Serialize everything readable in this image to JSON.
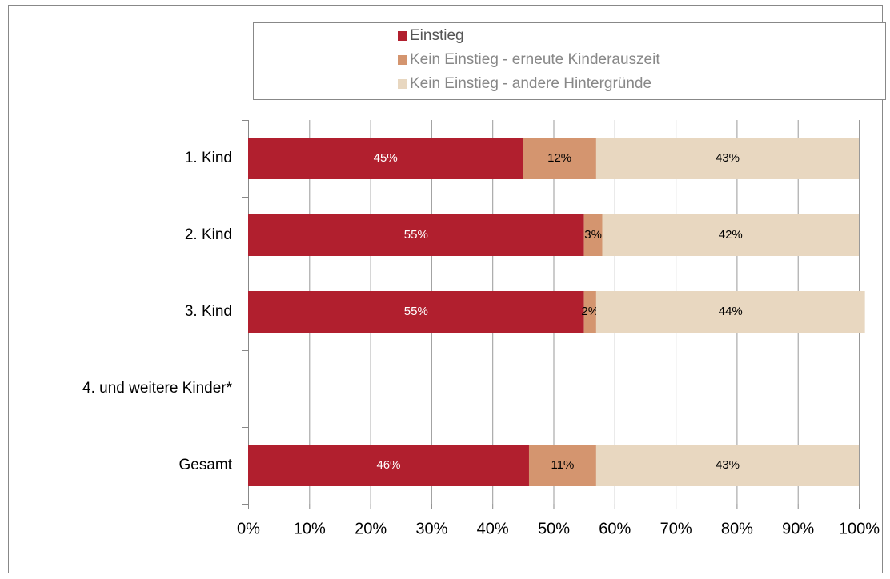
{
  "chart_data": {
    "type": "stacked-barh",
    "categories": [
      "1. Kind",
      "2. Kind",
      "3. Kind",
      "4. und weitere Kinder*",
      "Gesamt"
    ],
    "series": [
      {
        "name": "Einstieg",
        "color": "#b11f2e",
        "values": [
          45,
          55,
          55,
          null,
          46
        ],
        "value_labels": [
          "45%",
          "55%",
          "55%",
          null,
          "46%"
        ]
      },
      {
        "name": "Kein Einstieg - erneute Kinderauszeit",
        "color": "#d4956f",
        "values": [
          12,
          3,
          2,
          null,
          11
        ],
        "value_labels": [
          "12%",
          "3%",
          "2%",
          null,
          "11%"
        ]
      },
      {
        "name": "Kein Einstieg - andere Hintergründe",
        "color": "#e8d7c0",
        "values": [
          43,
          42,
          44,
          null,
          43
        ],
        "value_labels": [
          "43%",
          "42%",
          "44%",
          null,
          "43%"
        ]
      }
    ],
    "xlim": [
      0,
      100
    ],
    "xticks": [
      {
        "value": 0,
        "label": "0%"
      },
      {
        "value": 10,
        "label": "10%"
      },
      {
        "value": 20,
        "label": "20%"
      },
      {
        "value": 30,
        "label": "30%"
      },
      {
        "value": 40,
        "label": "40%"
      },
      {
        "value": 50,
        "label": "50%"
      },
      {
        "value": 60,
        "label": "60%"
      },
      {
        "value": 70,
        "label": "70%"
      },
      {
        "value": 80,
        "label": "80%"
      },
      {
        "value": 90,
        "label": "90%"
      },
      {
        "value": 100,
        "label": "100%"
      }
    ],
    "grid": true,
    "legend": "top"
  }
}
